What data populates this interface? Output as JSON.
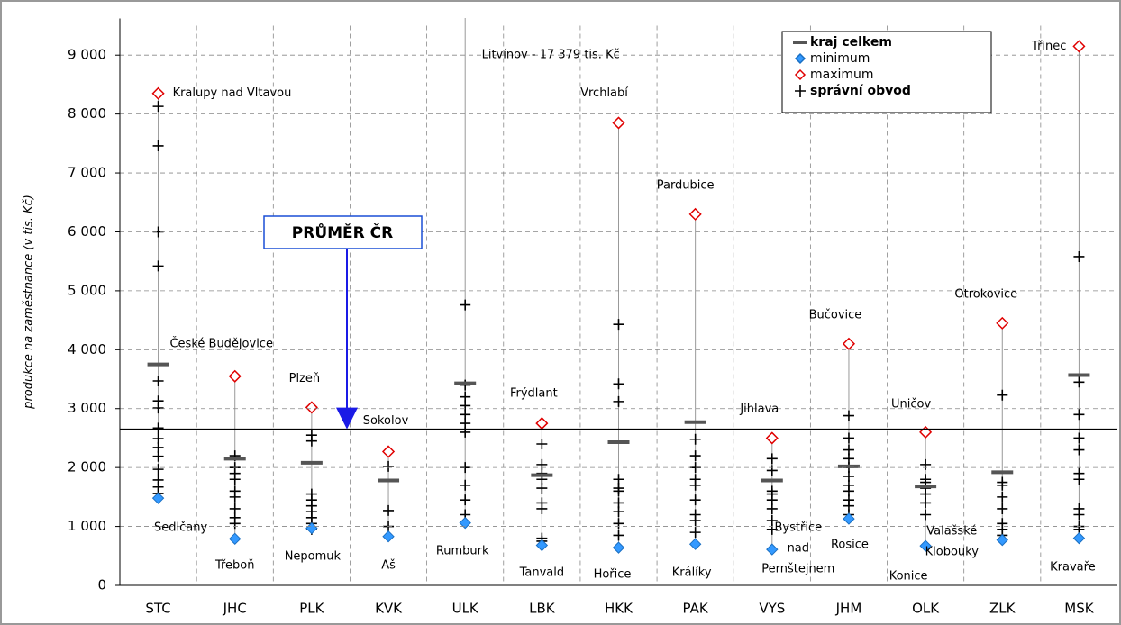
{
  "chart_data": {
    "type": "range",
    "y_label": "produkce na zaměstnance (v tis. Kč)",
    "categories": [
      "STC",
      "JHC",
      "PLK",
      "KVK",
      "ULK",
      "LBK",
      "HKK",
      "PAK",
      "VYS",
      "JHM",
      "OLK",
      "ZLK",
      "MSK"
    ],
    "series": [
      {
        "name": "kraj celkem",
        "color": "#555555",
        "values": [
          3750,
          2150,
          2080,
          1780,
          3430,
          1870,
          2430,
          2770,
          1780,
          2020,
          1680,
          1920,
          3570
        ]
      },
      {
        "name": "minimum",
        "color": "#3399ff",
        "values": [
          1480,
          790,
          970,
          830,
          1060,
          680,
          640,
          700,
          610,
          1130,
          670,
          770,
          800
        ]
      },
      {
        "name": "maximum",
        "color": "#e00000",
        "values": [
          8350,
          3550,
          3020,
          2270,
          17379,
          2750,
          7850,
          6300,
          2500,
          4100,
          2600,
          4450,
          9150
        ]
      },
      {
        "name": "správní obvod",
        "color": "#000000",
        "values": [
          [
            8130,
            7460,
            6000,
            5420,
            3470,
            3130,
            3010,
            2670,
            2490,
            2340,
            2190,
            1970,
            1790,
            1670,
            1560
          ],
          [
            2200,
            2000,
            1900,
            1800,
            1600,
            1500,
            1300,
            1150,
            1050
          ],
          [
            2550,
            2450,
            1550,
            1450,
            1350,
            1250,
            1150,
            1050,
            950
          ],
          [
            2020,
            1270,
            1000
          ],
          [
            4760,
            3400,
            3200,
            3050,
            2900,
            2750,
            2600,
            2000,
            1700,
            1450,
            1200
          ],
          [
            2400,
            2050,
            1900,
            1800,
            1650,
            1400,
            1300,
            800,
            750
          ],
          [
            4430,
            3420,
            3120,
            1800,
            1650,
            1600,
            1400,
            1250,
            1050,
            850
          ],
          [
            2480,
            2200,
            2000,
            1800,
            1700,
            1450,
            1200,
            1100,
            900
          ],
          [
            2150,
            1950,
            1600,
            1550,
            1450,
            1300,
            1100,
            950
          ],
          [
            2880,
            2500,
            2300,
            2150,
            2000,
            1850,
            1700,
            1600,
            1450,
            1350,
            1200
          ],
          [
            2050,
            1800,
            1750,
            1650,
            1550,
            1400,
            1200
          ],
          [
            3230,
            1750,
            1700,
            1500,
            1300,
            1050,
            950,
            850
          ],
          [
            5580,
            3450,
            2900,
            2500,
            2300,
            1900,
            1800,
            1300,
            1200,
            1000,
            950
          ]
        ]
      }
    ],
    "max_labels": [
      [
        "Kralupy nad Vltavou"
      ],
      [
        "České Budějovice"
      ],
      [
        "Plzeň"
      ],
      [
        "Sokolov"
      ],
      [
        "Litvínov - 17 379 tis. Kč"
      ],
      [
        "Frýdlant"
      ],
      [
        "Vrchlabí"
      ],
      [
        "Pardubice"
      ],
      [
        "Jihlava"
      ],
      [
        "Bučovice"
      ],
      [
        "Uničov"
      ],
      [
        "Otrokovice"
      ],
      [
        "Třinec"
      ]
    ],
    "min_labels": [
      [
        "Sedlčany"
      ],
      [
        "Třeboň"
      ],
      [
        "Nepomuk"
      ],
      [
        "Aš"
      ],
      [
        "Rumburk"
      ],
      [
        "Tanvald"
      ],
      [
        "Hořice"
      ],
      [
        "Králíky"
      ],
      [
        "Bystřice",
        "nad",
        "Pernštejnem"
      ],
      [
        "Rosice"
      ],
      [
        "Konice"
      ],
      [
        "Valašské",
        "Klobouky"
      ],
      [
        "Kravaře"
      ]
    ],
    "average": 2650,
    "average_label": "PRŮMĚR ČR",
    "ylim": [
      0,
      9500
    ],
    "yticks": [
      0,
      {
        "value": 1000,
        "label": "1 000"
      },
      {
        "value": 2000,
        "label": "2 000"
      },
      {
        "value": 3000,
        "label": "3 000"
      },
      {
        "value": 4000,
        "label": "4 000"
      },
      {
        "value": 5000,
        "label": "5 000"
      },
      {
        "value": 6000,
        "label": "6 000"
      },
      {
        "value": 7000,
        "label": "7 000"
      },
      {
        "value": 8000,
        "label": "8 000"
      },
      {
        "value": 9000,
        "label": "9 000"
      }
    ],
    "grid": true
  }
}
